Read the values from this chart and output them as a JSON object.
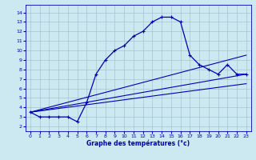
{
  "xlabel": "Graphe des températures (°c)",
  "x_ticks": [
    0,
    1,
    2,
    3,
    4,
    5,
    6,
    7,
    8,
    9,
    10,
    11,
    12,
    13,
    14,
    15,
    16,
    17,
    18,
    19,
    20,
    21,
    22,
    23
  ],
  "y_ticks": [
    2,
    3,
    4,
    5,
    6,
    7,
    8,
    9,
    10,
    11,
    12,
    13,
    14
  ],
  "ylim": [
    1.5,
    14.8
  ],
  "xlim": [
    -0.5,
    23.5
  ],
  "bg_color": "#cce8f0",
  "grid_color": "#9bbcc8",
  "line_color": "#0000bb",
  "main_line": {
    "x": [
      0,
      1,
      2,
      3,
      4,
      5,
      6,
      7,
      8,
      9,
      10,
      11,
      12,
      13,
      14,
      15,
      16,
      17,
      18,
      19,
      20,
      21,
      22,
      23
    ],
    "y": [
      3.5,
      3.0,
      3.0,
      3.0,
      3.0,
      2.5,
      4.5,
      7.5,
      9.0,
      10.0,
      10.5,
      11.5,
      12.0,
      13.0,
      13.5,
      13.5,
      13.0,
      9.5,
      8.5,
      8.0,
      7.5,
      8.5,
      7.5,
      7.5
    ]
  },
  "fan_lines": [
    {
      "x": [
        0,
        23
      ],
      "y": [
        3.5,
        9.5
      ]
    },
    {
      "x": [
        0,
        23
      ],
      "y": [
        3.5,
        7.5
      ]
    },
    {
      "x": [
        0,
        23
      ],
      "y": [
        3.5,
        6.5
      ]
    }
  ]
}
